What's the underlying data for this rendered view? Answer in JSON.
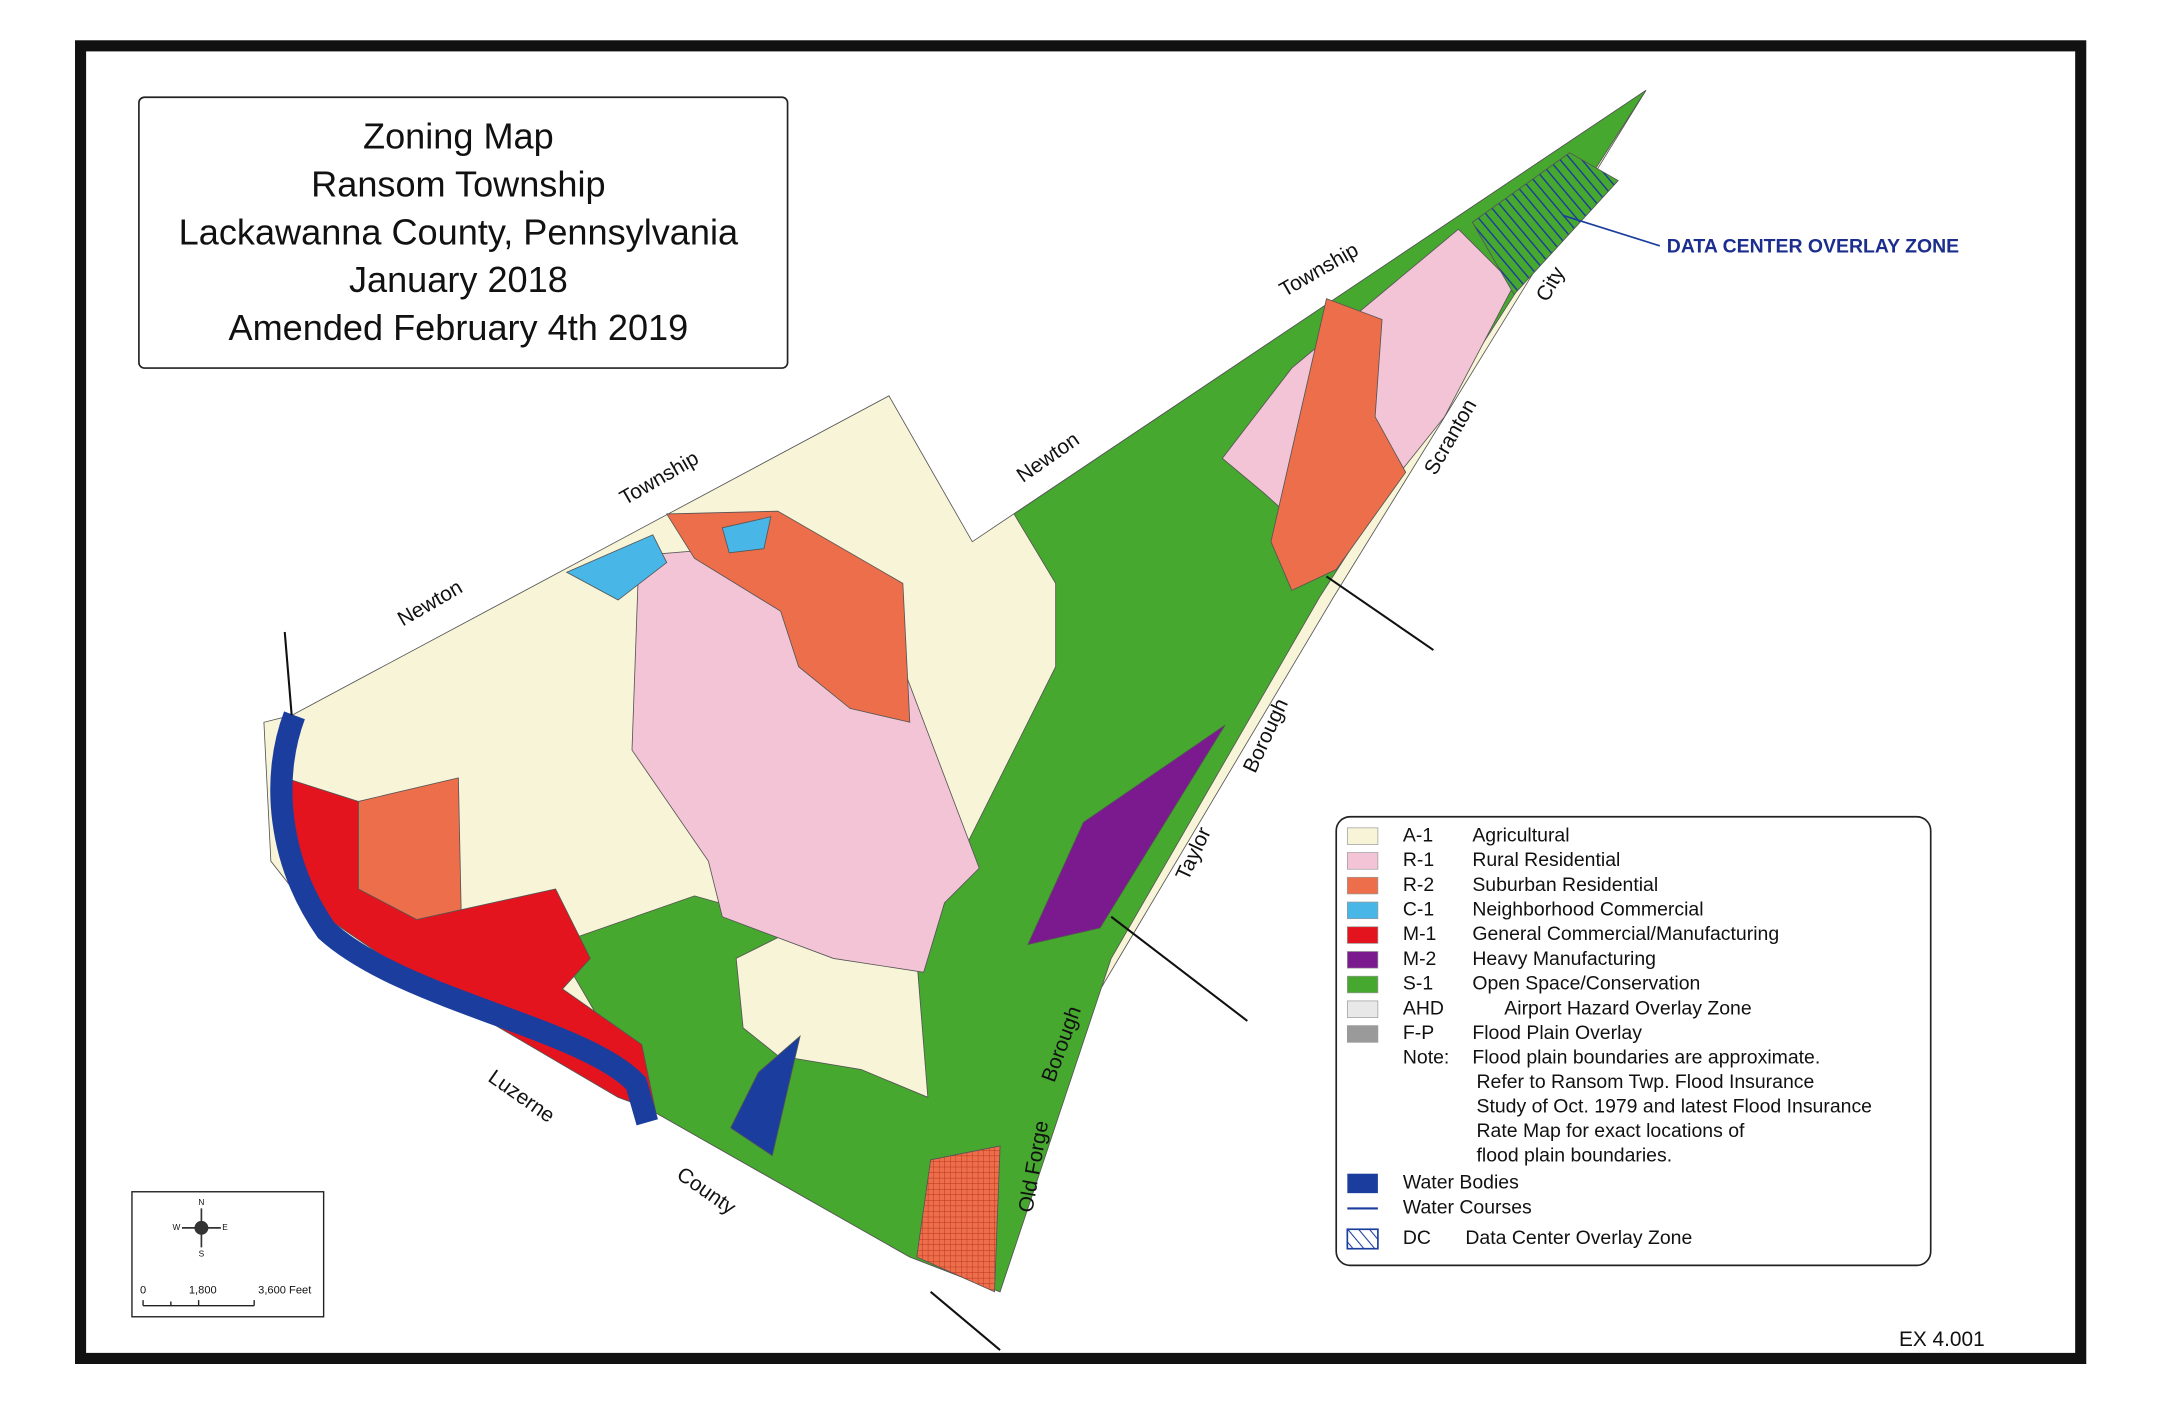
{
  "title": {
    "lines": [
      "Zoning Map",
      "Ransom Township",
      "Lackawanna County, Pennsylvania",
      "January 2018",
      "Amended February 4th 2019"
    ]
  },
  "neighbors": [
    "Newton",
    "Township",
    "Newton",
    "Township",
    "City",
    "Scranton",
    "Borough",
    "Taylor",
    "Borough",
    "Old Forge",
    "Luzerne",
    "County"
  ],
  "overlay_label": "DATA CENTER OVERLAY ZONE",
  "legend": {
    "items": [
      {
        "code": "A-1",
        "label": "Agricultural",
        "color": "#f8f4d8"
      },
      {
        "code": "R-1",
        "label": "Rural Residential",
        "color": "#f2c4d6"
      },
      {
        "code": "R-2",
        "label": "Suburban Residential",
        "color": "#ec6e4a"
      },
      {
        "code": "C-1",
        "label": "Neighborhood Commercial",
        "color": "#48b6e6"
      },
      {
        "code": "M-1",
        "label": "General Commercial/Manufacturing",
        "color": "#e4141e"
      },
      {
        "code": "M-2",
        "label": "Heavy Manufacturing",
        "color": "#7a1a8e"
      },
      {
        "code": "S-1",
        "label": "Open Space/Conservation",
        "color": "#46a82e"
      },
      {
        "code": "AHD",
        "label": "Airport Hazard Overlay Zone",
        "color": "#e8e8e8"
      },
      {
        "code": "F-P",
        "label": "Flood Plain Overlay",
        "color": "#9a9a9a"
      }
    ],
    "note": {
      "code": "Note:",
      "lines": [
        "Flood plain boundaries are approximate.",
        "Refer to Ransom Twp. Flood Insurance",
        "Study of Oct. 1979 and latest Flood Insurance",
        "Rate Map for exact locations of",
        "flood plain boundaries."
      ]
    },
    "water_bodies": "Water Bodies",
    "water_courses": "Water Courses",
    "dc": {
      "code": "DC",
      "label": "Data Center Overlay Zone"
    }
  },
  "scale_bar": {
    "labels": [
      "0",
      "1,800",
      "3,600 Feet"
    ]
  },
  "compass": [
    "N",
    "S",
    "E",
    "W"
  ],
  "exhibit": "EX 4.001"
}
